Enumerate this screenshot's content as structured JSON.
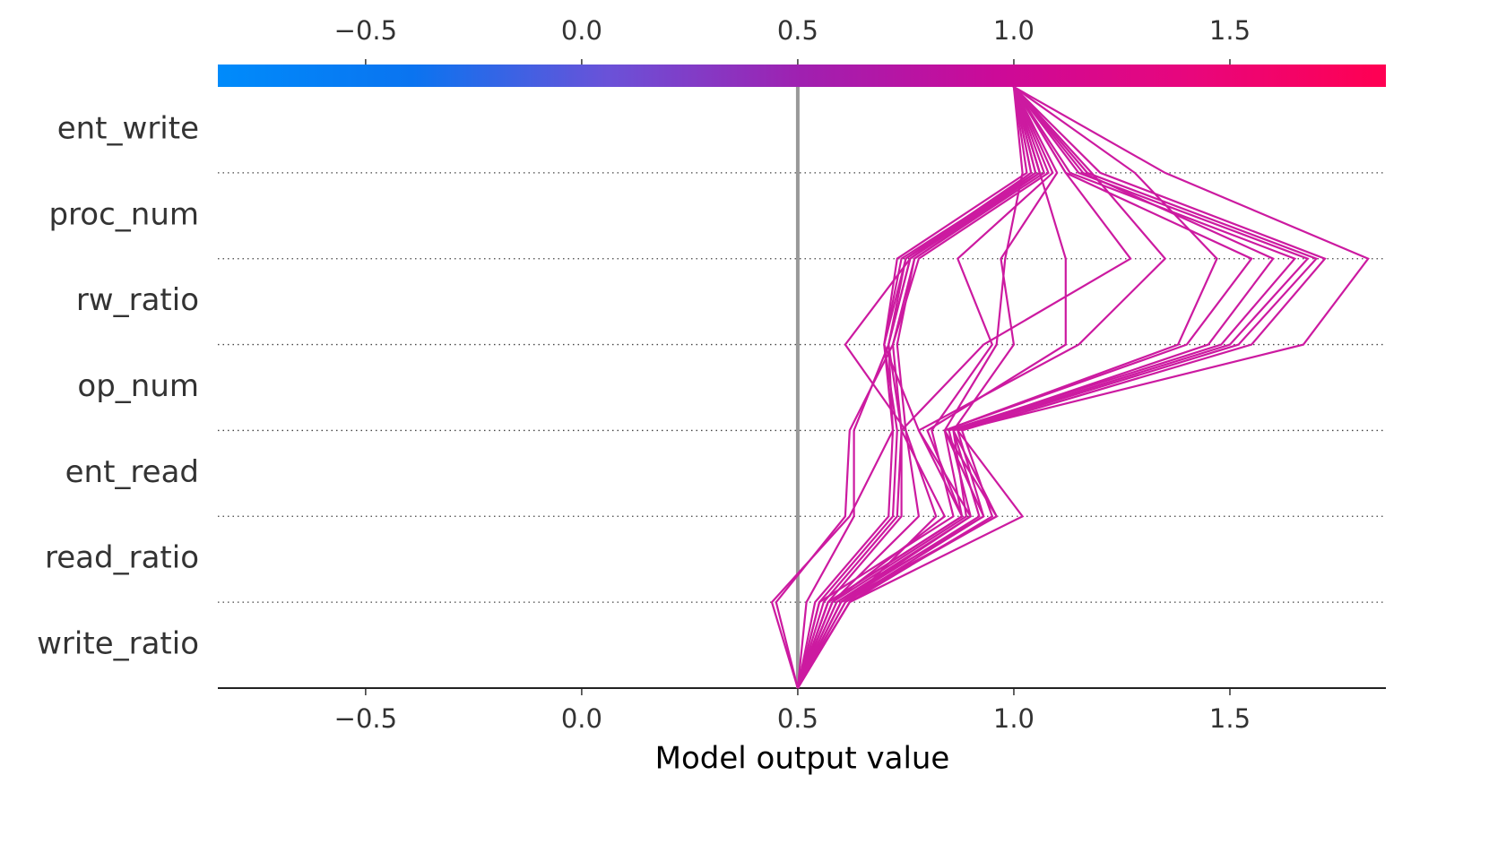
{
  "chart_data": {
    "type": "decision",
    "xlabel": "Model output value",
    "features": [
      "ent_write",
      "proc_num",
      "rw_ratio",
      "op_num",
      "ent_read",
      "read_ratio",
      "write_ratio"
    ],
    "xlim": [
      -0.842,
      1.861
    ],
    "xticks": [
      {
        "value": -0.5,
        "label": "−0.5"
      },
      {
        "value": 0,
        "label": "0.0"
      },
      0.5,
      {
        "value": 1,
        "label": "1.0"
      },
      1.5
    ],
    "base_value": 0.5,
    "base_line_color": "#999999",
    "line_color": "#cc1aa0",
    "colorbar_colors": [
      "#008bfb",
      "#0a74f0",
      "#6a52d8",
      "#a020b0",
      "#cc0a98",
      "#e8067c",
      "#ff0052"
    ],
    "series": [
      {
        "values": [
          1.0,
          1.06,
          0.75,
          0.7,
          0.73,
          0.72,
          0.55,
          0.5
        ]
      },
      {
        "values": [
          1.0,
          1.04,
          0.76,
          0.71,
          0.74,
          0.73,
          0.56,
          0.5
        ]
      },
      {
        "values": [
          1.0,
          1.08,
          0.78,
          0.72,
          0.74,
          0.74,
          0.57,
          0.5
        ]
      },
      {
        "values": [
          1.0,
          1.05,
          0.74,
          0.7,
          0.72,
          0.71,
          0.54,
          0.5
        ]
      },
      {
        "values": [
          1.0,
          1.07,
          0.77,
          0.73,
          0.75,
          0.78,
          0.58,
          0.5
        ]
      },
      {
        "values": [
          1.0,
          1.06,
          0.76,
          0.61,
          0.75,
          0.82,
          0.62,
          0.5
        ]
      },
      {
        "values": [
          1.0,
          1.03,
          0.73,
          0.7,
          0.78,
          0.88,
          0.57,
          0.5
        ]
      },
      {
        "values": [
          1.0,
          1.15,
          1.68,
          1.5,
          0.86,
          0.92,
          0.6,
          0.5
        ]
      },
      {
        "values": [
          1.0,
          1.17,
          1.7,
          1.52,
          0.87,
          0.93,
          0.61,
          0.5
        ]
      },
      {
        "values": [
          1.0,
          1.13,
          1.65,
          1.48,
          0.85,
          0.9,
          0.59,
          0.5
        ]
      },
      {
        "values": [
          1.0,
          1.16,
          1.6,
          1.45,
          0.86,
          0.89,
          0.58,
          0.5
        ]
      },
      {
        "values": [
          1.0,
          1.2,
          1.72,
          1.55,
          0.88,
          0.95,
          0.62,
          0.5
        ]
      },
      {
        "values": [
          1.0,
          1.12,
          1.55,
          1.4,
          0.84,
          0.88,
          0.57,
          0.5
        ]
      },
      {
        "values": [
          1.0,
          1.35,
          1.82,
          1.67,
          0.87,
          1.02,
          0.62,
          0.5
        ]
      },
      {
        "values": [
          1.0,
          1.28,
          1.47,
          1.38,
          0.84,
          0.96,
          0.61,
          0.5
        ]
      },
      {
        "values": [
          1.0,
          1.12,
          1.27,
          0.93,
          0.74,
          0.84,
          0.58,
          0.5
        ]
      },
      {
        "values": [
          1.0,
          1.18,
          1.35,
          1.15,
          0.78,
          0.9,
          0.6,
          0.5
        ]
      },
      {
        "values": [
          1.0,
          1.06,
          1.12,
          1.12,
          0.8,
          0.88,
          0.57,
          0.5
        ]
      },
      {
        "values": [
          1.0,
          1.1,
          0.97,
          1.0,
          0.86,
          0.96,
          0.6,
          0.5
        ]
      },
      {
        "values": [
          1.0,
          1.02,
          0.98,
          0.96,
          0.84,
          0.93,
          0.59,
          0.5
        ]
      },
      {
        "values": [
          1.0,
          1.09,
          0.87,
          0.95,
          0.81,
          0.86,
          0.55,
          0.5
        ]
      },
      {
        "values": [
          1.0,
          1.05,
          0.76,
          0.71,
          0.72,
          0.62,
          0.44,
          0.5
        ]
      },
      {
        "values": [
          1.0,
          1.06,
          0.77,
          0.72,
          0.62,
          0.61,
          0.45,
          0.5
        ]
      },
      {
        "values": [
          1.0,
          1.04,
          0.75,
          0.71,
          0.63,
          0.63,
          0.52,
          0.5
        ]
      }
    ]
  }
}
